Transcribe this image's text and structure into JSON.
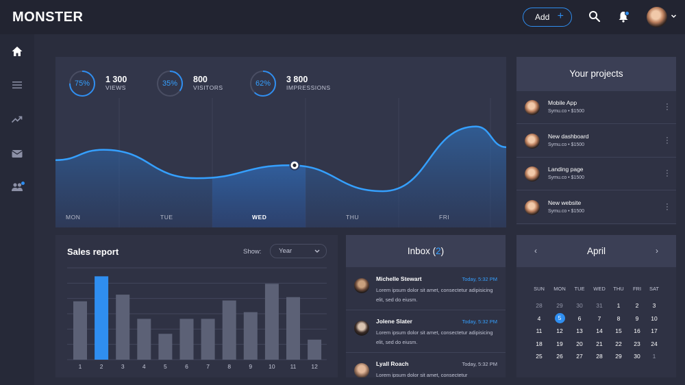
{
  "app": {
    "logo": "MONSTER"
  },
  "topbar": {
    "add_label": "Add",
    "add_icon": "plus-icon"
  },
  "stats": [
    {
      "percent": "75%",
      "value": "1 300",
      "label": "VIEWS",
      "fraction": 0.75
    },
    {
      "percent": "35%",
      "value": "800",
      "label": "VISITORS",
      "fraction": 0.35
    },
    {
      "percent": "62%",
      "value": "3 800",
      "label": "IMPRESSIONS",
      "fraction": 0.62
    }
  ],
  "days": [
    "MON",
    "TUE",
    "WED",
    "THU",
    "FRI"
  ],
  "sales": {
    "title": "Sales report",
    "show_label": "Show:",
    "selected_range": "Year"
  },
  "inbox": {
    "title": "Inbox",
    "count": "2",
    "messages": [
      {
        "name": "Michelle Stewart",
        "time": "Today, 5:32 PM",
        "text": "Lorem ipsum dolor sit amet, consectetur adipisicing elit, sed do eiusm."
      },
      {
        "name": "Jolene Slater",
        "time": "Today, 5:32 PM",
        "text": "Lorem ipsum dolor sit amet, consectetur adipisicing elit, sed do eiusm."
      },
      {
        "name": "Lyall Roach",
        "time": "Today, 5:32 PM",
        "text": "Lorem ipsum dolor sit amet, consectetur"
      }
    ]
  },
  "projects": {
    "title": "Your projects",
    "items": [
      {
        "title": "Mobile App",
        "sub": "Symu.co  •  $1500"
      },
      {
        "title": "New dashboard",
        "sub": "Symu.co  •  $1500"
      },
      {
        "title": "Landing page",
        "sub": "Symu.co  •  $1500"
      },
      {
        "title": "New website",
        "sub": "Symu.co  •  $1500"
      }
    ]
  },
  "calendar": {
    "month": "April",
    "prev": "‹",
    "next": "›",
    "weekdays": [
      "SUN",
      "MON",
      "TUE",
      "WED",
      "THU",
      "FRI",
      "SAT"
    ],
    "weeks": [
      [
        "28",
        "29",
        "30",
        "31",
        "1",
        "2",
        "3"
      ],
      [
        "4",
        "5",
        "6",
        "7",
        "8",
        "9",
        "10"
      ],
      [
        "11",
        "12",
        "13",
        "14",
        "15",
        "16",
        "17"
      ],
      [
        "18",
        "19",
        "20",
        "21",
        "22",
        "23",
        "24"
      ],
      [
        "25",
        "26",
        "27",
        "28",
        "29",
        "30",
        "1"
      ]
    ],
    "today": "5"
  },
  "colors": {
    "accent": "#2f8ef0",
    "panel": "#32364a",
    "background": "#2a2d3d"
  },
  "chart_data": [
    {
      "type": "area",
      "title": "",
      "categories": [
        "MON",
        "TUE",
        "WED",
        "THU",
        "FRI"
      ],
      "values": [
        3.0,
        1.9,
        2.4,
        1.4,
        3.9
      ],
      "highlight": "WED",
      "ylim": [
        0,
        5
      ],
      "grid": false
    },
    {
      "type": "bar",
      "title": "Sales report",
      "categories": [
        "1",
        "2",
        "3",
        "4",
        "5",
        "6",
        "7",
        "8",
        "9",
        "10",
        "11",
        "12"
      ],
      "values": [
        7,
        10,
        7.8,
        4.9,
        3.1,
        4.9,
        4.9,
        7.1,
        5.7,
        9.1,
        7.5,
        2.4
      ],
      "highlight": "2",
      "ylim": [
        0,
        12
      ],
      "grid": true
    }
  ]
}
